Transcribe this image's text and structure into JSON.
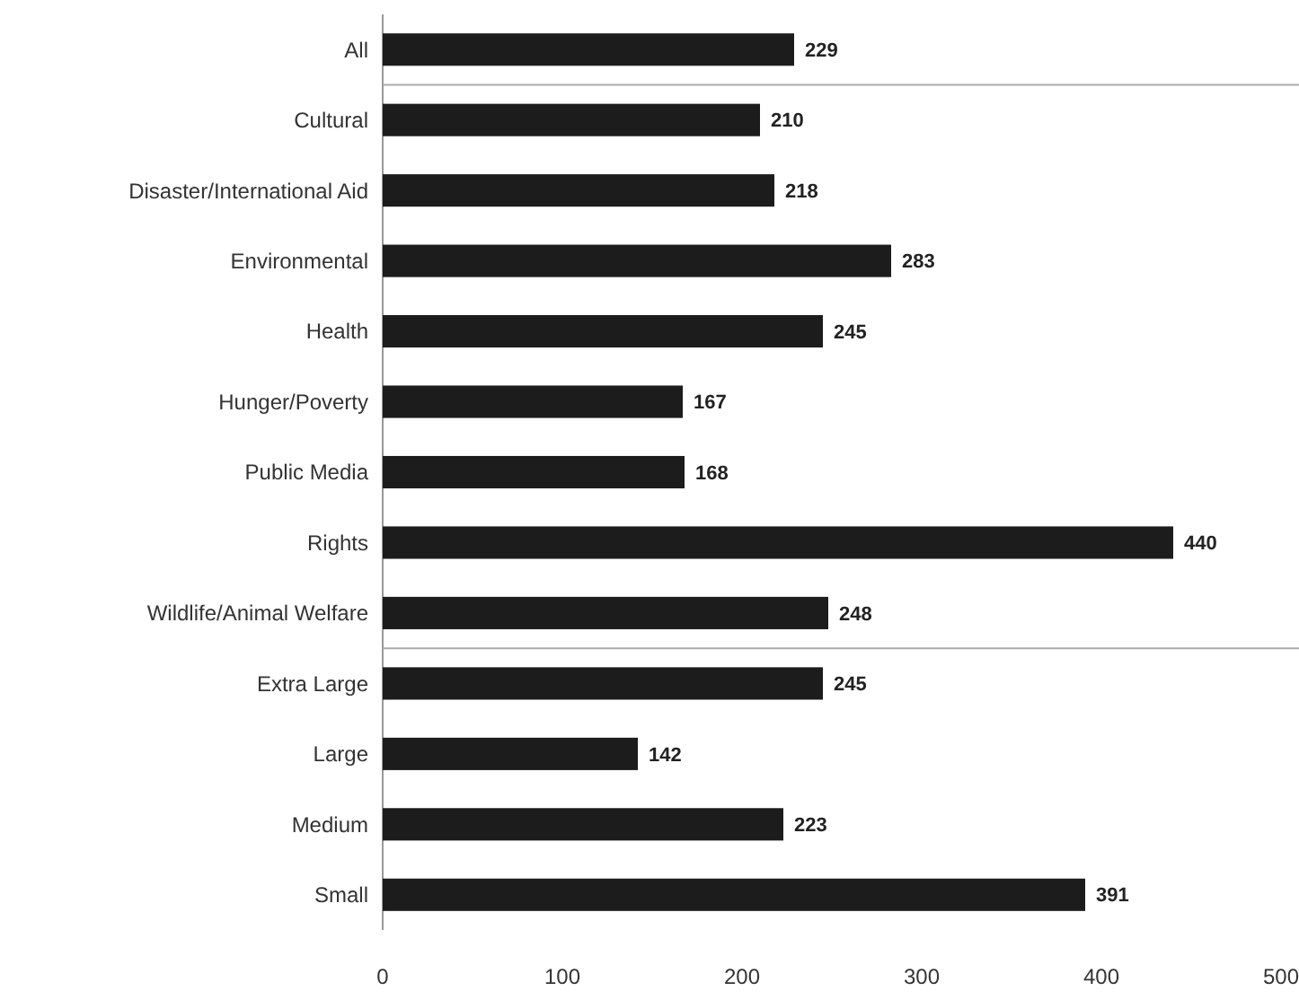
{
  "chart_data": {
    "type": "bar",
    "orientation": "horizontal",
    "categories": [
      "All",
      "Cultural",
      "Disaster/International Aid",
      "Environmental",
      "Health",
      "Hunger/Poverty",
      "Public Media",
      "Rights",
      "Wildlife/Animal Welfare",
      "Extra Large",
      "Large",
      "Medium",
      "Small"
    ],
    "values": [
      229,
      210,
      218,
      283,
      245,
      167,
      168,
      440,
      248,
      245,
      142,
      223,
      391
    ],
    "color": "#1c1c1c",
    "xlim": [
      0,
      500
    ],
    "xticks": [
      0,
      100,
      200,
      300,
      400,
      500
    ],
    "data_labels": true,
    "grid": false
  }
}
